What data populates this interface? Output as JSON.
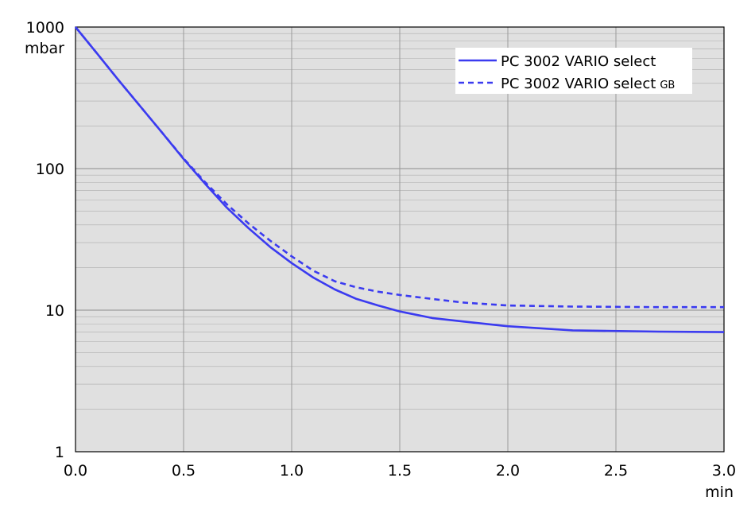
{
  "chart_data": {
    "type": "line",
    "title": "",
    "xlabel": "",
    "ylabel": "",
    "x_unit": "min",
    "y_unit": "mbar",
    "xlim": [
      0,
      3
    ],
    "ylim": [
      1,
      1000
    ],
    "y_scale": "log",
    "grid": true,
    "legend_position": "top-right",
    "x_ticks": [
      "0.0",
      "0.5",
      "1.0",
      "1.5",
      "2.0",
      "2.5",
      "3.0"
    ],
    "x_tick_values": [
      0,
      0.5,
      1,
      1.5,
      2,
      2.5,
      3
    ],
    "y_ticks": [
      "1",
      "10",
      "100",
      "1000"
    ],
    "y_tick_values": [
      1,
      10,
      100,
      1000
    ],
    "colors": {
      "plot_background": "#e0e0e0",
      "series": "#3b3bf0",
      "grid": "#ababab"
    },
    "series": [
      {
        "name": "PC 3002 VARIO select",
        "name_suffix": "",
        "style": "solid",
        "x": [
          0,
          0.1,
          0.2,
          0.3,
          0.4,
          0.5,
          0.6,
          0.7,
          0.8,
          0.9,
          1.0,
          1.1,
          1.2,
          1.3,
          1.4,
          1.5,
          1.65,
          1.8,
          2.0,
          2.3,
          2.7,
          3.0
        ],
        "y": [
          1000,
          650,
          420,
          275,
          180,
          117,
          78,
          53,
          38,
          28,
          21.5,
          17,
          14,
          12,
          10.8,
          9.8,
          8.8,
          8.3,
          7.7,
          7.2,
          7.05,
          7.0
        ]
      },
      {
        "name": "PC 3002 VARIO select",
        "name_suffix": "GB",
        "style": "dashed",
        "x": [
          0,
          0.1,
          0.2,
          0.3,
          0.4,
          0.5,
          0.6,
          0.7,
          0.8,
          0.9,
          1.0,
          1.1,
          1.2,
          1.3,
          1.4,
          1.5,
          1.65,
          1.8,
          2.0,
          2.3,
          2.7,
          3.0
        ],
        "y": [
          1000,
          650,
          420,
          275,
          180,
          118,
          80,
          56,
          41,
          31,
          24,
          19,
          16,
          14.5,
          13.5,
          12.8,
          12,
          11.3,
          10.8,
          10.6,
          10.5,
          10.5
        ]
      }
    ]
  }
}
